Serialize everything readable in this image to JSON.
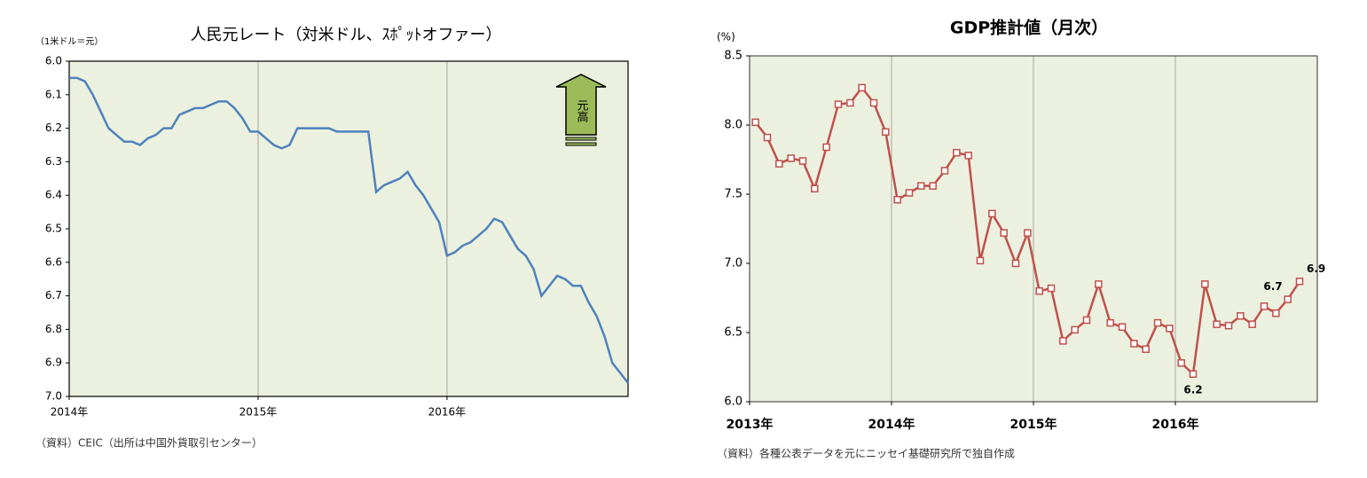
{
  "chart_data": [
    {
      "type": "line",
      "title": "人民元レート（対米ドル、ｽﾎﾟｯﾄオファー）",
      "unit_label": "（1米ドル＝元）",
      "source": "（資料）CEIC（出所は中国外貨取引センター）",
      "annotation": "元高",
      "categories": [
        "2014年",
        null,
        null,
        null,
        null,
        null,
        null,
        null,
        null,
        null,
        null,
        null,
        null,
        null,
        null,
        null,
        null,
        null,
        null,
        null,
        null,
        null,
        null,
        null,
        "2015年",
        null,
        null,
        null,
        null,
        null,
        null,
        null,
        null,
        null,
        null,
        null,
        null,
        null,
        null,
        null,
        null,
        null,
        null,
        null,
        null,
        null,
        null,
        null,
        "2016年",
        null,
        null,
        null,
        null,
        null,
        null,
        null,
        null,
        null,
        null,
        null,
        null,
        null,
        null,
        null,
        null,
        null,
        null,
        null,
        null,
        null,
        null,
        null
      ],
      "series": [
        {
          "name": "人民元レート",
          "color": "#4f81bd",
          "values": [
            6.05,
            6.05,
            6.06,
            6.1,
            6.15,
            6.2,
            6.22,
            6.24,
            6.24,
            6.25,
            6.23,
            6.22,
            6.2,
            6.2,
            6.16,
            6.15,
            6.14,
            6.14,
            6.13,
            6.12,
            6.12,
            6.14,
            6.17,
            6.21,
            6.21,
            6.23,
            6.25,
            6.26,
            6.25,
            6.2,
            6.2,
            6.2,
            6.2,
            6.2,
            6.21,
            6.21,
            6.21,
            6.21,
            6.21,
            6.39,
            6.37,
            6.36,
            6.35,
            6.33,
            6.37,
            6.4,
            6.44,
            6.48,
            6.58,
            6.57,
            6.55,
            6.54,
            6.52,
            6.5,
            6.47,
            6.48,
            6.52,
            6.56,
            6.58,
            6.62,
            6.7,
            6.67,
            6.64,
            6.65,
            6.67,
            6.67,
            6.72,
            6.76,
            6.82,
            6.9,
            6.93,
            6.96
          ]
        }
      ],
      "ylim": [
        6,
        7
      ],
      "y_inverted": true,
      "yticks": [
        {
          "value": 6,
          "label": "6.0"
        },
        6.1,
        6.2,
        6.3,
        6.4,
        6.5,
        6.6,
        6.7,
        6.8,
        6.9,
        {
          "value": 7,
          "label": "7.0"
        }
      ],
      "grid": "x",
      "markers": false
    },
    {
      "type": "line",
      "title": "GDP推計値（月次）",
      "unit_label": "(%)",
      "source": "（資料）各種公表データを元にニッセイ基礎研究所で独自作成",
      "categories": [
        "2013年",
        null,
        null,
        null,
        null,
        null,
        null,
        null,
        null,
        null,
        null,
        null,
        "2014年",
        null,
        null,
        null,
        null,
        null,
        null,
        null,
        null,
        null,
        null,
        null,
        "2015年",
        null,
        null,
        null,
        null,
        null,
        null,
        null,
        null,
        null,
        null,
        null,
        "2016年",
        null,
        null,
        null,
        null,
        null,
        null,
        null,
        null,
        null,
        null,
        null
      ],
      "series": [
        {
          "name": "GDP推計値",
          "color": "#c0504d",
          "values": [
            8.02,
            7.91,
            7.72,
            7.76,
            7.74,
            7.54,
            7.84,
            8.15,
            8.16,
            8.27,
            8.16,
            7.95,
            7.46,
            7.51,
            7.56,
            7.56,
            7.67,
            7.8,
            7.78,
            7.02,
            7.36,
            7.22,
            7.0,
            7.22,
            6.8,
            6.82,
            6.44,
            6.52,
            6.59,
            6.85,
            6.57,
            6.54,
            6.42,
            6.38,
            6.57,
            6.53,
            6.28,
            6.2,
            6.85,
            6.56,
            6.55,
            6.62,
            6.56,
            6.69,
            6.64,
            6.74,
            6.87,
            null
          ],
          "value_labels": [
            null,
            null,
            null,
            null,
            null,
            null,
            null,
            null,
            null,
            null,
            null,
            null,
            null,
            null,
            null,
            null,
            null,
            null,
            null,
            null,
            null,
            null,
            null,
            null,
            null,
            null,
            null,
            null,
            null,
            null,
            null,
            null,
            null,
            null,
            null,
            null,
            null,
            "6.2",
            null,
            null,
            null,
            null,
            null,
            null,
            null,
            "6.7",
            "6.9",
            null
          ]
        }
      ],
      "ylim": [
        6,
        8.5
      ],
      "y_inverted": false,
      "yticks": [
        {
          "value": 6,
          "label": "6.0"
        },
        6.5,
        {
          "value": 7,
          "label": "7.0"
        },
        7.5,
        {
          "value": 8,
          "label": "8.0"
        },
        8.5
      ],
      "grid": "x",
      "markers": true
    }
  ]
}
